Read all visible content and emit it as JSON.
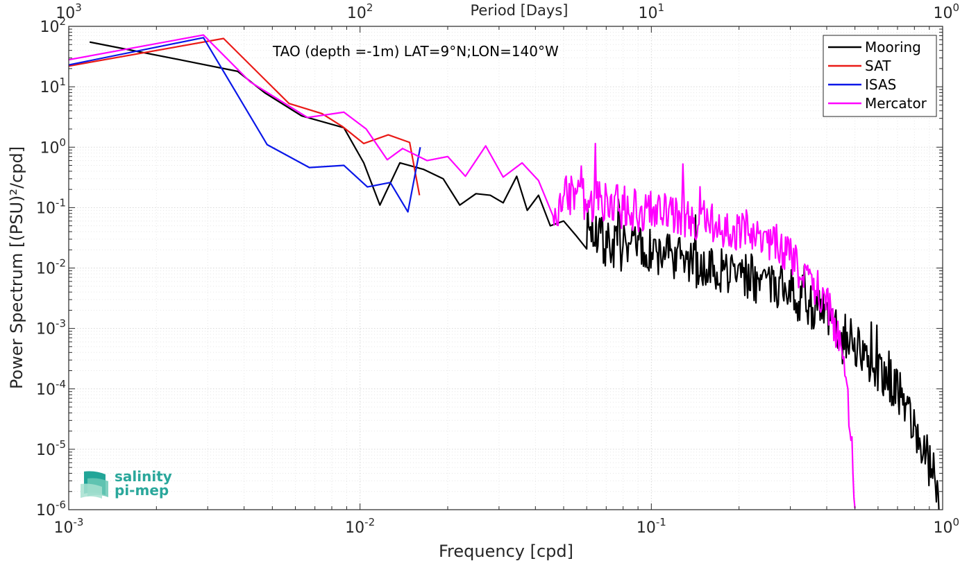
{
  "chart_data": {
    "type": "line",
    "title": "TAO (depth =-1m) LAT=9°N;LON=140°W",
    "xlabel": "Frequency [cpd]",
    "ylabel": "Power Spectrum [(PSU)²/cpd]",
    "x2label": "Period [Days]",
    "xscale": "log",
    "yscale": "log",
    "xlim": [
      0.001,
      1
    ],
    "ylim": [
      1e-06,
      100
    ],
    "grid": true,
    "minor_grid": true,
    "legend_position": "top-right",
    "x_ticks": [
      {
        "v": 0.001,
        "base": "10",
        "exp": "-3"
      },
      {
        "v": 0.01,
        "base": "10",
        "exp": "-2"
      },
      {
        "v": 0.1,
        "base": "10",
        "exp": "-1"
      },
      {
        "v": 1,
        "base": "10",
        "exp": "0"
      }
    ],
    "top_ticks": [
      {
        "v": 0.001,
        "base": "10",
        "exp": "3"
      },
      {
        "v": 0.01,
        "base": "10",
        "exp": "2"
      },
      {
        "v": 0.1,
        "base": "10",
        "exp": "1"
      },
      {
        "v": 1,
        "base": "10",
        "exp": "0"
      }
    ],
    "y_ticks": [
      {
        "v": 100,
        "base": "10",
        "exp": "2"
      },
      {
        "v": 10,
        "base": "10",
        "exp": "1"
      },
      {
        "v": 1,
        "base": "10",
        "exp": "0"
      },
      {
        "v": 0.1,
        "base": "10",
        "exp": "-1"
      },
      {
        "v": 0.01,
        "base": "10",
        "exp": "-2"
      },
      {
        "v": 0.001,
        "base": "10",
        "exp": "-3"
      },
      {
        "v": 0.0001,
        "base": "10",
        "exp": "-4"
      },
      {
        "v": 1e-05,
        "base": "10",
        "exp": "-5"
      },
      {
        "v": 1e-06,
        "base": "10",
        "exp": "-6"
      }
    ],
    "series": [
      {
        "name": "Mooring",
        "color": "#000000",
        "noisy": {
          "from": 0.06,
          "to": 0.98,
          "n": 380,
          "amp": 0.28,
          "seed": 7
        },
        "points": [
          [
            0.00118,
            55
          ],
          [
            0.0025,
            27
          ],
          [
            0.0038,
            18
          ],
          [
            0.0047,
            8
          ],
          [
            0.0063,
            3.3
          ],
          [
            0.0088,
            2.1
          ],
          [
            0.0103,
            0.55
          ],
          [
            0.0117,
            0.11
          ],
          [
            0.0137,
            0.55
          ],
          [
            0.0165,
            0.43
          ],
          [
            0.0193,
            0.3
          ],
          [
            0.022,
            0.11
          ],
          [
            0.025,
            0.17
          ],
          [
            0.028,
            0.16
          ],
          [
            0.031,
            0.12
          ],
          [
            0.0345,
            0.33
          ],
          [
            0.0375,
            0.09
          ],
          [
            0.041,
            0.16
          ],
          [
            0.045,
            0.05
          ],
          [
            0.05,
            0.06
          ],
          [
            0.055,
            0.035
          ],
          [
            0.06,
            0.05
          ],
          [
            0.07,
            0.025
          ],
          [
            0.085,
            0.02
          ],
          [
            0.1,
            0.018
          ],
          [
            0.12,
            0.014
          ],
          [
            0.15,
            0.011
          ],
          [
            0.18,
            0.009
          ],
          [
            0.21,
            0.0075
          ],
          [
            0.25,
            0.0055
          ],
          [
            0.28,
            0.0045
          ],
          [
            0.31,
            0.0035
          ],
          [
            0.35,
            0.0025
          ],
          [
            0.4,
            0.0015
          ],
          [
            0.45,
            0.0009
          ],
          [
            0.5,
            0.00055
          ],
          [
            0.55,
            0.0003
          ],
          [
            0.6,
            0.0002
          ],
          [
            0.65,
            0.00015
          ],
          [
            0.7,
            0.0001
          ],
          [
            0.75,
            5e-05
          ],
          [
            0.8,
            2.5e-05
          ],
          [
            0.85,
            1e-05
          ],
          [
            0.9,
            6e-06
          ],
          [
            0.95,
            3e-06
          ],
          [
            0.98,
            1e-06
          ]
        ]
      },
      {
        "name": "SAT",
        "color": "#ea1a17",
        "points": [
          [
            0.001,
            22
          ],
          [
            0.0034,
            63
          ],
          [
            0.0057,
            5.3
          ],
          [
            0.0074,
            3.6
          ],
          [
            0.0087,
            2.2
          ],
          [
            0.0103,
            1.15
          ],
          [
            0.0125,
            1.6
          ],
          [
            0.0148,
            1.2
          ],
          [
            0.016,
            0.16
          ]
        ]
      },
      {
        "name": "ISAS",
        "color": "#0a17e8",
        "points": [
          [
            0.001,
            23
          ],
          [
            0.0029,
            65
          ],
          [
            0.0048,
            1.1
          ],
          [
            0.0067,
            0.46
          ],
          [
            0.0088,
            0.5
          ],
          [
            0.0106,
            0.22
          ],
          [
            0.0127,
            0.26
          ],
          [
            0.0146,
            0.085
          ],
          [
            0.0161,
            1.0
          ]
        ]
      },
      {
        "name": "Mercator",
        "color": "#ff00ff",
        "noisy": {
          "from": 0.046,
          "to": 0.5,
          "n": 300,
          "amp": 0.26,
          "seed": 3
        },
        "points": [
          [
            0.001,
            28
          ],
          [
            0.0029,
            72
          ],
          [
            0.0042,
            12
          ],
          [
            0.0066,
            3.1
          ],
          [
            0.0088,
            3.8
          ],
          [
            0.0105,
            2.0
          ],
          [
            0.0124,
            0.62
          ],
          [
            0.014,
            0.95
          ],
          [
            0.017,
            0.6
          ],
          [
            0.02,
            0.7
          ],
          [
            0.023,
            0.33
          ],
          [
            0.027,
            1.05
          ],
          [
            0.031,
            0.32
          ],
          [
            0.036,
            0.55
          ],
          [
            0.041,
            0.28
          ],
          [
            0.046,
            0.05
          ],
          [
            0.05,
            0.15
          ],
          [
            0.055,
            0.2
          ],
          [
            0.06,
            0.12
          ],
          [
            0.07,
            0.13
          ],
          [
            0.08,
            0.1
          ],
          [
            0.1,
            0.085
          ],
          [
            0.12,
            0.08
          ],
          [
            0.15,
            0.06
          ],
          [
            0.18,
            0.05
          ],
          [
            0.22,
            0.04
          ],
          [
            0.26,
            0.028
          ],
          [
            0.3,
            0.015
          ],
          [
            0.34,
            0.007
          ],
          [
            0.38,
            0.0035
          ],
          [
            0.42,
            0.0015
          ],
          [
            0.45,
            0.0004
          ],
          [
            0.47,
            8e-05
          ],
          [
            0.49,
            8e-06
          ],
          [
            0.5,
            1e-06
          ]
        ]
      }
    ]
  },
  "logo": {
    "line1": "salinity",
    "line2": "pi-mep"
  }
}
